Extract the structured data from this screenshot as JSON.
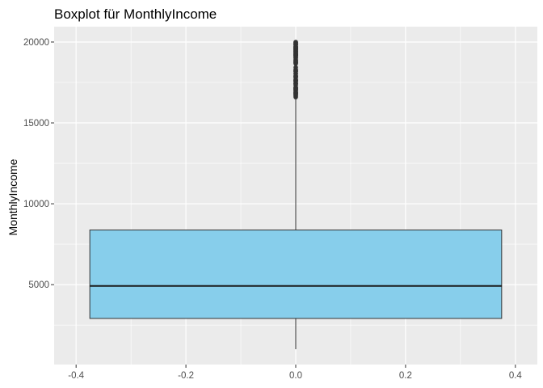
{
  "chart_data": {
    "type": "boxplot",
    "title": "Boxplot für MonthlyIncome",
    "xlabel": "",
    "ylabel": "MonthlyIncome",
    "xlim": [
      -0.4,
      0.4
    ],
    "ylim": [
      1009,
      19999
    ],
    "x_ticks": [
      -0.4,
      -0.2,
      0.0,
      0.2,
      0.4
    ],
    "x_tick_labels": [
      "-0.4",
      "-0.2",
      "0.0",
      "0.2",
      "0.4"
    ],
    "y_ticks": [
      5000,
      10000,
      15000,
      20000
    ],
    "y_tick_labels": [
      "5000",
      "10000",
      "15000",
      "20000"
    ],
    "grid": true,
    "box": {
      "x_center": 0.0,
      "width": 0.75,
      "whisker_low": 1009,
      "q1": 2911,
      "median": 4919,
      "q3": 8379,
      "whisker_high": 16581,
      "outliers": [
        16595,
        16659,
        16704,
        16752,
        16792,
        16799,
        16823,
        16856,
        16880,
        16885,
        16959,
        17007,
        17048,
        17068,
        17099,
        17123,
        17159,
        17169,
        17174,
        17181,
        17328,
        17399,
        17426,
        17444,
        17465,
        17567,
        17584,
        17603,
        17639,
        17650,
        17665,
        17779,
        17861,
        17856,
        17875,
        17924,
        18041,
        18061,
        18172,
        18200,
        18213,
        18265,
        18303,
        18430,
        18665,
        18711,
        18722,
        18740,
        18789,
        18824,
        18844,
        18880,
        18947,
        19033,
        19045,
        19081,
        19141,
        19161,
        19187,
        19189,
        19190,
        19197,
        19232,
        19237,
        19246,
        19272,
        19293,
        19328,
        19331,
        19392,
        19406,
        19419,
        19431,
        19436,
        19502,
        19513,
        19517,
        19545,
        19566,
        19613,
        19626,
        19627,
        19636,
        19658,
        19665,
        19701,
        19717,
        19740,
        19833,
        19845,
        19847,
        19859,
        19926,
        19943,
        19973,
        19999
      ]
    },
    "colors": {
      "panel_background": "#ebebeb",
      "grid_major": "#ffffff",
      "box_fill": "#87ceeb",
      "box_stroke": "#333333",
      "median": "#1a1a1a",
      "outlier": "#333333"
    }
  }
}
